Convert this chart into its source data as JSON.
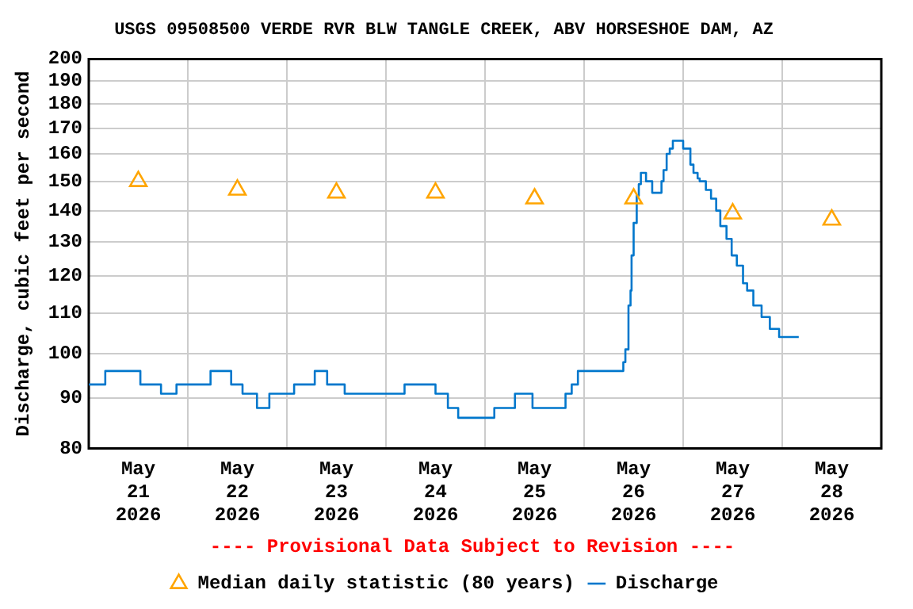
{
  "chart_data": {
    "type": "step",
    "title": "USGS 09508500 VERDE RVR BLW TANGLE CREEK, ABV HORSESHOE DAM, AZ",
    "ylabel": "Discharge, cubic feet per second",
    "annotations": [
      "---- Provisional Data Subject to Revision ----"
    ],
    "series": [
      {
        "name": "Median daily statistic (80 years)",
        "type": "scatter",
        "marker": "triangle",
        "color": "#ffa500",
        "x": [
          "2026-05-21T12:00",
          "2026-05-22T12:00",
          "2026-05-23T12:00",
          "2026-05-24T12:00",
          "2026-05-25T12:00",
          "2026-05-26T12:00",
          "2026-05-27T12:00",
          "2026-05-28T12:00"
        ],
        "values": [
          150,
          147,
          146,
          146,
          144,
          144,
          139,
          137
        ]
      },
      {
        "name": "Discharge",
        "type": "step",
        "marker": "none",
        "color": "#0077cc",
        "x": [
          "2026-05-21T00:00",
          "2026-05-21T04:00",
          "2026-05-21T12:30",
          "2026-05-21T17:30",
          "2026-05-21T21:15",
          "2026-05-22T05:30",
          "2026-05-22T10:30",
          "2026-05-22T13:15",
          "2026-05-22T16:45",
          "2026-05-22T19:45",
          "2026-05-23T01:45",
          "2026-05-23T06:45",
          "2026-05-23T09:45",
          "2026-05-23T14:00",
          "2026-05-24T04:30",
          "2026-05-24T12:00",
          "2026-05-24T15:00",
          "2026-05-24T17:30",
          "2026-05-25T02:15",
          "2026-05-25T07:15",
          "2026-05-25T11:30",
          "2026-05-25T19:30",
          "2026-05-25T21:00",
          "2026-05-25T22:30",
          "2026-05-26T09:30",
          "2026-05-26T10:00",
          "2026-05-26T10:45",
          "2026-05-26T11:15",
          "2026-05-26T11:30",
          "2026-05-26T12:00",
          "2026-05-26T12:45",
          "2026-05-26T13:15",
          "2026-05-26T13:45",
          "2026-05-26T15:00",
          "2026-05-26T16:30",
          "2026-05-26T18:45",
          "2026-05-26T19:15",
          "2026-05-26T20:00",
          "2026-05-26T20:45",
          "2026-05-26T21:30",
          "2026-05-27T00:00",
          "2026-05-27T01:45",
          "2026-05-27T02:30",
          "2026-05-27T03:30",
          "2026-05-27T04:00",
          "2026-05-27T05:30",
          "2026-05-27T06:45",
          "2026-05-27T08:00",
          "2026-05-27T09:00",
          "2026-05-27T10:30",
          "2026-05-27T11:45",
          "2026-05-27T13:00",
          "2026-05-27T14:30",
          "2026-05-27T15:30",
          "2026-05-27T17:00",
          "2026-05-27T19:00",
          "2026-05-27T21:00",
          "2026-05-27T23:15",
          "2026-05-28T04:00"
        ],
        "values": [
          93,
          96,
          93,
          91,
          93,
          96,
          93,
          91,
          88,
          91,
          93,
          96,
          93,
          91,
          93,
          91,
          88,
          86,
          88,
          91,
          88,
          91,
          93,
          96,
          98,
          101,
          112,
          116,
          126,
          136,
          145,
          149,
          153,
          150,
          146,
          150,
          154,
          160,
          162,
          165,
          162,
          156,
          153,
          151,
          150,
          147,
          144,
          140,
          135,
          131,
          126,
          123,
          118,
          116,
          112,
          109,
          106,
          104,
          104
        ]
      }
    ],
    "xlim": [
      "2026-05-21T00:00",
      "2026-05-29T00:00"
    ],
    "xticks": [
      {
        "value": "2026-05-21T12:00",
        "label": "May 21 2026"
      },
      {
        "value": "2026-05-22T00:00",
        "label": null
      },
      {
        "value": "2026-05-22T12:00",
        "label": "May 22 2026"
      },
      {
        "value": "2026-05-23T00:00",
        "label": null
      },
      {
        "value": "2026-05-23T12:00",
        "label": "May 23 2026"
      },
      {
        "value": "2026-05-24T00:00",
        "label": null
      },
      {
        "value": "2026-05-24T12:00",
        "label": "May 24 2026"
      },
      {
        "value": "2026-05-25T00:00",
        "label": null
      },
      {
        "value": "2026-05-25T12:00",
        "label": "May 25 2026"
      },
      {
        "value": "2026-05-26T00:00",
        "label": null
      },
      {
        "value": "2026-05-26T12:00",
        "label": "May 26 2026"
      },
      {
        "value": "2026-05-27T00:00",
        "label": null
      },
      {
        "value": "2026-05-27T12:00",
        "label": "May 27 2026"
      },
      {
        "value": "2026-05-28T00:00",
        "label": null
      },
      {
        "value": "2026-05-28T12:00",
        "label": "May 28 2026"
      }
    ],
    "ylim": [
      80,
      200
    ],
    "yticks": [
      80,
      90,
      100,
      110,
      120,
      130,
      140,
      150,
      160,
      170,
      180,
      190,
      200
    ],
    "log": true,
    "grid": true,
    "legend": "bottom"
  }
}
